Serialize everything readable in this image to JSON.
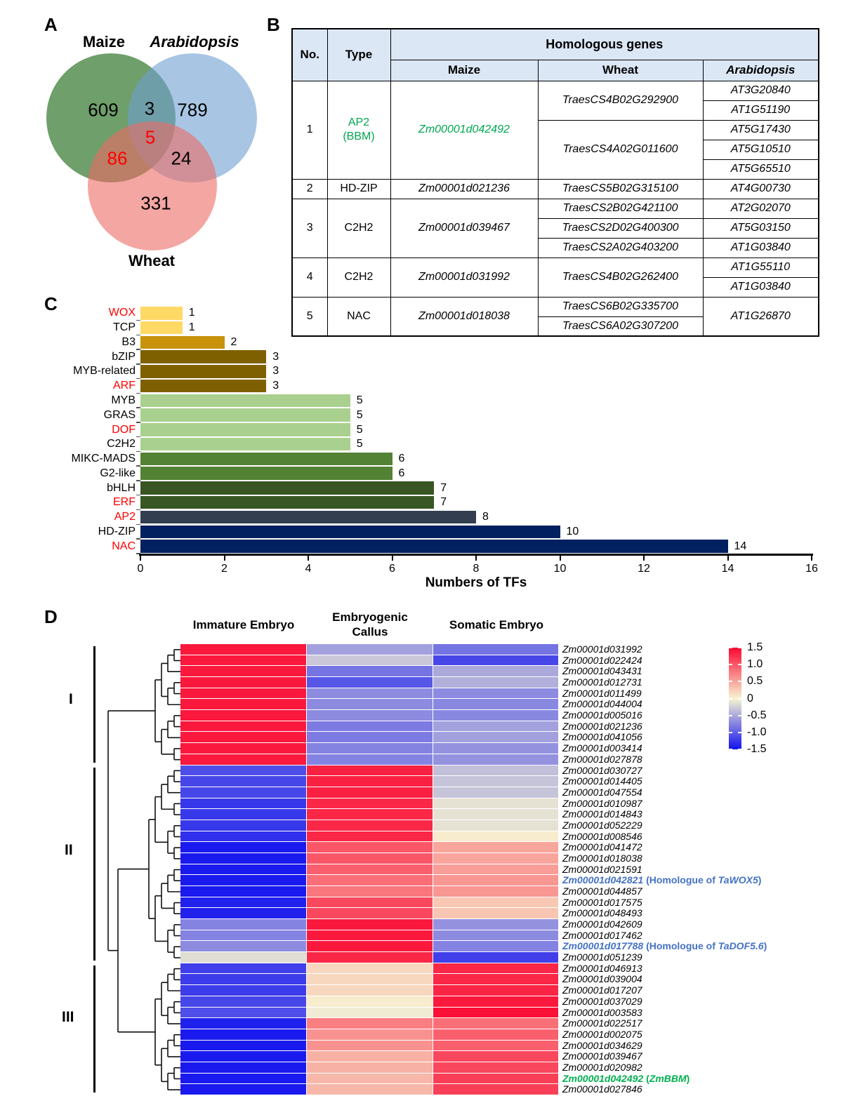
{
  "figure": {
    "panel_a_label": "A",
    "panel_b_label": "B",
    "panel_c_label": "C",
    "panel_d_label": "D",
    "accent_red": "#ff0000",
    "annotation_blue": "#4472c4",
    "annotation_green": "#00b050"
  },
  "chart_data": [
    {
      "type": "venn",
      "sets": [
        {
          "label": "Maize",
          "fill": "rgba(15,95,7,0.6)",
          "italic": false
        },
        {
          "label": "Arabidopsis",
          "fill": "rgba(110,160,210,0.6)",
          "italic": true
        },
        {
          "label": "Wheat",
          "fill": "rgba(237,107,100,0.6)",
          "italic": false
        }
      ],
      "regions": {
        "maize_only": "609",
        "maize_arabidopsis": "3",
        "arabidopsis_only": "789",
        "maize_arabidopsis_wheat": "5",
        "maize_wheat": "86",
        "arabidopsis_wheat": "24",
        "wheat_only": "331"
      },
      "highlighted_regions": [
        "maize_arabidopsis_wheat",
        "maize_wheat"
      ],
      "highlight_color": "#ff0000"
    },
    {
      "type": "table",
      "header": {
        "no": "No.",
        "tf_type": "Type",
        "group": "Homologous genes",
        "species": [
          "Maize",
          "Wheat",
          "Arabidopsis"
        ]
      },
      "rows": [
        [
          {
            "t": "1",
            "rs": 5,
            "k": "no"
          },
          {
            "t": "AP2\n(BBM)",
            "rs": 5,
            "k": "type",
            "green": true
          },
          {
            "t": "Zm00001d042492",
            "rs": 5,
            "k": "gene",
            "green": true
          },
          {
            "t": "TraesCS4B02G292900",
            "rs": 2,
            "k": "gene"
          },
          {
            "t": "AT3G20840",
            "k": "gene"
          }
        ],
        [
          {
            "t": "AT1G51190",
            "k": "gene"
          }
        ],
        [
          {
            "t": "TraesCS4A02G011600",
            "rs": 3,
            "k": "gene"
          },
          {
            "t": "AT5G17430",
            "k": "gene"
          }
        ],
        [
          {
            "t": "AT5G10510",
            "k": "gene"
          }
        ],
        [
          {
            "t": "AT5G65510",
            "k": "gene"
          }
        ],
        [
          {
            "t": "2",
            "k": "no"
          },
          {
            "t": "HD-ZIP",
            "k": "type"
          },
          {
            "t": "Zm00001d021236",
            "k": "gene"
          },
          {
            "t": "TraesCS5B02G315100",
            "k": "gene"
          },
          {
            "t": "AT4G00730",
            "k": "gene"
          }
        ],
        [
          {
            "t": "3",
            "rs": 3,
            "k": "no"
          },
          {
            "t": "C2H2",
            "rs": 3,
            "k": "type"
          },
          {
            "t": "Zm00001d039467",
            "rs": 3,
            "k": "gene"
          },
          {
            "t": "TraesCS2B02G421100",
            "k": "gene"
          },
          {
            "t": "AT2G02070",
            "k": "gene"
          }
        ],
        [
          {
            "t": "TraesCS2D02G400300",
            "k": "gene"
          },
          {
            "t": "AT5G03150",
            "k": "gene"
          }
        ],
        [
          {
            "t": "TraesCS2A02G403200",
            "k": "gene"
          },
          {
            "t": "AT1G03840",
            "k": "gene"
          }
        ],
        [
          {
            "t": "4",
            "rs": 2,
            "k": "no"
          },
          {
            "t": "C2H2",
            "rs": 2,
            "k": "type"
          },
          {
            "t": "Zm00001d031992",
            "rs": 2,
            "k": "gene"
          },
          {
            "t": "TraesCS4B02G262400",
            "rs": 2,
            "k": "gene"
          },
          {
            "t": "AT1G55110",
            "k": "gene"
          }
        ],
        [
          {
            "t": "AT1G03840",
            "k": "gene"
          }
        ],
        [
          {
            "t": "5",
            "rs": 2,
            "k": "no"
          },
          {
            "t": "NAC",
            "rs": 2,
            "k": "type"
          },
          {
            "t": "Zm00001d018038",
            "rs": 2,
            "k": "gene"
          },
          {
            "t": "TraesCS6B02G335700",
            "k": "gene"
          },
          {
            "t": "AT1G26870",
            "rs": 2,
            "k": "gene"
          }
        ],
        [
          {
            "t": "TraesCS6A02G307200",
            "k": "gene"
          }
        ]
      ]
    },
    {
      "type": "bar",
      "orientation": "horizontal",
      "xlabel": "Numbers of TFs",
      "xlim": [
        0,
        16
      ],
      "xticks": [
        0,
        2,
        4,
        6,
        8,
        10,
        12,
        14,
        16
      ],
      "categories": [
        {
          "label": "WOX",
          "value": 1,
          "color": "#ffd966",
          "label_color": "#ff0000"
        },
        {
          "label": "TCP",
          "value": 1,
          "color": "#ffd966",
          "label_color": "#000000"
        },
        {
          "label": "B3",
          "value": 2,
          "color": "#c8930b",
          "label_color": "#000000"
        },
        {
          "label": "bZIP",
          "value": 3,
          "color": "#7f6000",
          "label_color": "#000000"
        },
        {
          "label": "MYB-related",
          "value": 3,
          "color": "#7f6000",
          "label_color": "#000000"
        },
        {
          "label": "ARF",
          "value": 3,
          "color": "#7f6000",
          "label_color": "#ff0000"
        },
        {
          "label": "MYB",
          "value": 5,
          "color": "#a9d08e",
          "label_color": "#000000"
        },
        {
          "label": "GRAS",
          "value": 5,
          "color": "#a9d08e",
          "label_color": "#000000"
        },
        {
          "label": "DOF",
          "value": 5,
          "color": "#a9d08e",
          "label_color": "#ff0000"
        },
        {
          "label": "C2H2",
          "value": 5,
          "color": "#a9d08e",
          "label_color": "#000000"
        },
        {
          "label": "MIKC-MADS",
          "value": 6,
          "color": "#548235",
          "label_color": "#000000"
        },
        {
          "label": "G2-like",
          "value": 6,
          "color": "#548235",
          "label_color": "#000000"
        },
        {
          "label": "bHLH",
          "value": 7,
          "color": "#375623",
          "label_color": "#000000"
        },
        {
          "label": "ERF",
          "value": 7,
          "color": "#375623",
          "label_color": "#ff0000"
        },
        {
          "label": "AP2",
          "value": 8,
          "color": "#333f50",
          "label_color": "#ff0000"
        },
        {
          "label": "HD-ZIP",
          "value": 10,
          "color": "#002060",
          "label_color": "#000000"
        },
        {
          "label": "NAC",
          "value": 14,
          "color": "#002060",
          "label_color": "#ff0000"
        }
      ]
    },
    {
      "type": "heatmap",
      "columns": [
        "Immature Embryo",
        "Embryogenic\nCallus",
        "Somatic Embryo"
      ],
      "colorbar": {
        "vmin": -1.5,
        "vmax": 1.5,
        "ticks": [
          "1.5",
          "1.0",
          "0.5",
          "0",
          "-0.5",
          "-1.0",
          "-1.5"
        ]
      },
      "group_labels": [
        "I",
        "II",
        "III"
      ],
      "rows": [
        {
          "gene": "Zm00001d031992",
          "group": "I",
          "values": [
            1.4,
            -0.55,
            -0.85
          ]
        },
        {
          "gene": "Zm00001d022424",
          "group": "I",
          "values": [
            1.4,
            -0.3,
            -1.15
          ]
        },
        {
          "gene": "Zm00001d043431",
          "group": "I",
          "values": [
            1.4,
            -0.85,
            -0.5
          ]
        },
        {
          "gene": "Zm00001d012731",
          "group": "I",
          "values": [
            1.4,
            -1.05,
            -0.45
          ]
        },
        {
          "gene": "Zm00001d011499",
          "group": "I",
          "values": [
            1.4,
            -0.7,
            -0.7
          ]
        },
        {
          "gene": "Zm00001d044004",
          "group": "I",
          "values": [
            1.4,
            -0.7,
            -0.72
          ]
        },
        {
          "gene": "Zm00001d005016",
          "group": "I",
          "values": [
            1.4,
            -0.7,
            -0.72
          ]
        },
        {
          "gene": "Zm00001d021236",
          "group": "I",
          "values": [
            1.4,
            -0.8,
            -0.55
          ]
        },
        {
          "gene": "Zm00001d041056",
          "group": "I",
          "values": [
            1.4,
            -0.8,
            -0.55
          ]
        },
        {
          "gene": "Zm00001d003414",
          "group": "I",
          "values": [
            1.4,
            -0.75,
            -0.65
          ]
        },
        {
          "gene": "Zm00001d027878",
          "group": "I",
          "values": [
            1.4,
            -0.75,
            -0.65
          ]
        },
        {
          "gene": "Zm00001d030727",
          "group": "II",
          "values": [
            -1.1,
            1.35,
            -0.35
          ]
        },
        {
          "gene": "Zm00001d014405",
          "group": "II",
          "values": [
            -1.15,
            1.35,
            -0.32
          ]
        },
        {
          "gene": "Zm00001d047554",
          "group": "II",
          "values": [
            -1.15,
            1.35,
            -0.32
          ]
        },
        {
          "gene": "Zm00001d010987",
          "group": "II",
          "values": [
            -1.25,
            1.3,
            -0.12
          ]
        },
        {
          "gene": "Zm00001d014843",
          "group": "II",
          "values": [
            -1.25,
            1.3,
            -0.12
          ]
        },
        {
          "gene": "Zm00001d052229",
          "group": "II",
          "values": [
            -1.25,
            1.3,
            -0.12
          ]
        },
        {
          "gene": "Zm00001d008546",
          "group": "II",
          "values": [
            -1.3,
            1.3,
            0.05
          ]
        },
        {
          "gene": "Zm00001d041472",
          "group": "II",
          "values": [
            -1.45,
            1.0,
            0.5
          ]
        },
        {
          "gene": "Zm00001d018038",
          "group": "II",
          "values": [
            -1.45,
            1.0,
            0.5
          ]
        },
        {
          "gene": "Zm00001d021591",
          "group": "II",
          "values": [
            -1.45,
            0.95,
            0.55
          ]
        },
        {
          "gene": "Zm00001d042821",
          "group": "II",
          "values": [
            -1.45,
            0.85,
            0.6
          ],
          "note_prefix": "Homologue of ",
          "note_gene": "TaWOX5",
          "note_color": "#4472c4"
        },
        {
          "gene": "Zm00001d044857",
          "group": "II",
          "values": [
            -1.45,
            0.8,
            0.6
          ]
        },
        {
          "gene": "Zm00001d017575",
          "group": "II",
          "values": [
            -1.4,
            1.1,
            0.28
          ]
        },
        {
          "gene": "Zm00001d048493",
          "group": "II",
          "values": [
            -1.4,
            1.1,
            0.3
          ]
        },
        {
          "gene": "Zm00001d042609",
          "group": "II",
          "values": [
            -0.75,
            1.4,
            -0.65
          ]
        },
        {
          "gene": "Zm00001d017462",
          "group": "II",
          "values": [
            -0.75,
            1.4,
            -0.7
          ]
        },
        {
          "gene": "Zm00001d017788",
          "group": "II",
          "values": [
            -0.7,
            1.4,
            -0.75
          ],
          "note_prefix": "Homologue of ",
          "note_gene": "TaDOF5.6",
          "note_color": "#4472c4"
        },
        {
          "gene": "Zm00001d051239",
          "group": "II",
          "values": [
            -0.15,
            1.3,
            -1.2
          ]
        },
        {
          "gene": "Zm00001d046913",
          "group": "III",
          "values": [
            -1.2,
            0.18,
            1.3
          ]
        },
        {
          "gene": "Zm00001d039004",
          "group": "III",
          "values": [
            -1.22,
            0.18,
            1.3
          ]
        },
        {
          "gene": "Zm00001d017207",
          "group": "III",
          "values": [
            -1.22,
            0.18,
            1.32
          ]
        },
        {
          "gene": "Zm00001d037029",
          "group": "III",
          "values": [
            -1.15,
            0.05,
            1.4
          ]
        },
        {
          "gene": "Zm00001d003583",
          "group": "III",
          "values": [
            -1.1,
            -0.05,
            1.45
          ]
        },
        {
          "gene": "Zm00001d022517",
          "group": "III",
          "values": [
            -1.4,
            0.75,
            0.85
          ]
        },
        {
          "gene": "Zm00001d002075",
          "group": "III",
          "values": [
            -1.45,
            0.62,
            0.95
          ]
        },
        {
          "gene": "Zm00001d034629",
          "group": "III",
          "values": [
            -1.45,
            0.62,
            0.95
          ]
        },
        {
          "gene": "Zm00001d039467",
          "group": "III",
          "values": [
            -1.45,
            0.42,
            1.1
          ]
        },
        {
          "gene": "Zm00001d020982",
          "group": "III",
          "values": [
            -1.45,
            0.42,
            1.1
          ]
        },
        {
          "gene": "Zm00001d042492",
          "group": "III",
          "values": [
            -1.45,
            0.38,
            1.15
          ],
          "note_gene": "ZmBBM",
          "note_color": "#00b050"
        },
        {
          "gene": "Zm00001d027846",
          "group": "III",
          "values": [
            -1.45,
            0.38,
            1.15
          ]
        }
      ]
    }
  ]
}
